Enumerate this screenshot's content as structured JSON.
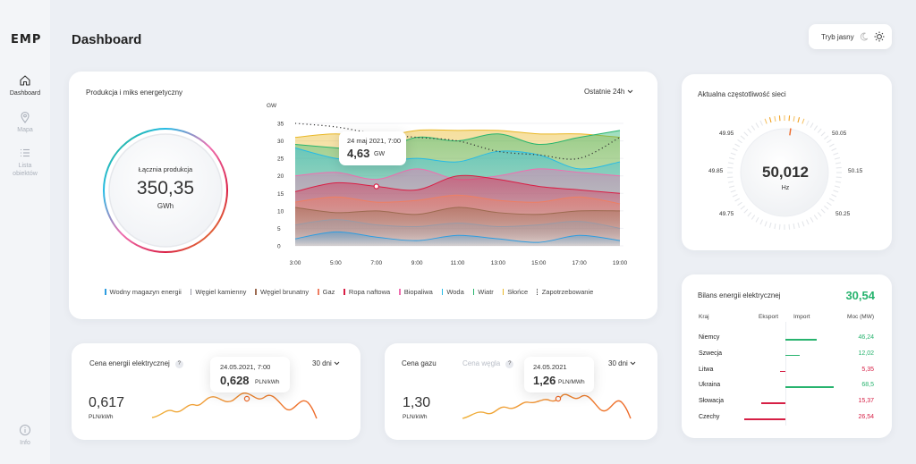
{
  "brand": {
    "logo": "EMP"
  },
  "nav": [
    {
      "label": "Dashboard",
      "icon": "home-icon"
    },
    {
      "label": "Mapa",
      "icon": "map-pin-icon"
    },
    {
      "label": "Lista obiektów",
      "icon": "list-icon"
    }
  ],
  "nav_footer": {
    "label": "Info",
    "icon": "info-icon"
  },
  "page": {
    "title": "Dashboard"
  },
  "theme": {
    "label": "Tryb jasny",
    "icons": [
      "moon-icon",
      "sun-icon"
    ]
  },
  "production": {
    "title": "Produkcja i miks energetyczny",
    "period": "Ostatnie 24h",
    "total_label": "Łącznia produkcja",
    "total_value": "350,35",
    "total_unit": "GWh",
    "tooltip": {
      "date": "24 maj 2021, 7:00",
      "value": "4,63",
      "unit": "GW"
    },
    "legend": [
      {
        "label": "Wodny magazyn energii",
        "color": "#2f9de0"
      },
      {
        "label": "Węgiel kamienny",
        "color": "#9a9aa6"
      },
      {
        "label": "Węgiel brunatny",
        "color": "#9c6a50"
      },
      {
        "label": "Gaz",
        "color": "#ee7f63"
      },
      {
        "label": "Ropa naftowa",
        "color": "#d91e45"
      },
      {
        "label": "Biopaliwa",
        "color": "#ef6fb0"
      },
      {
        "label": "Woda",
        "color": "#25bbe6"
      },
      {
        "label": "Wiatr",
        "color": "#28b56e"
      },
      {
        "label": "Słońce",
        "color": "#e9b827"
      },
      {
        "label": "Zapotrzebowanie",
        "color": "#333333"
      }
    ]
  },
  "chart_data": {
    "type": "area",
    "ylabel": "GW",
    "ylim": [
      0,
      35
    ],
    "yticks": [
      0,
      5,
      10,
      15,
      20,
      25,
      30,
      35
    ],
    "x": [
      "3:00",
      "5:00",
      "7:00",
      "9:00",
      "11:00",
      "13:00",
      "15:00",
      "17:00",
      "19:00"
    ],
    "series": [
      {
        "name": "Wodny magazyn energii",
        "color": "#2f9de0",
        "values": [
          2,
          4,
          2.5,
          1.5,
          3,
          2,
          1,
          3,
          1.5
        ]
      },
      {
        "name": "Węgiel kamienny",
        "color": "#9a9aa6",
        "values": [
          6,
          7.5,
          6,
          5.5,
          6.5,
          5.5,
          6,
          7,
          5
        ]
      },
      {
        "name": "Węgiel brunatny",
        "color": "#9c6a50",
        "values": [
          11,
          9.5,
          10,
          9,
          11,
          9.5,
          9,
          10,
          10
        ]
      },
      {
        "name": "Gaz",
        "color": "#ee7f63",
        "values": [
          12.5,
          14,
          12.5,
          13,
          14.5,
          13,
          12.5,
          14,
          12
        ]
      },
      {
        "name": "Ropa naftowa",
        "color": "#d91e45",
        "values": [
          15.5,
          18,
          17,
          16,
          20,
          19,
          17,
          16,
          15
        ]
      },
      {
        "name": "Biopaliwa",
        "color": "#ef6fb0",
        "values": [
          20,
          21,
          19,
          22,
          19,
          20,
          22,
          21,
          20
        ]
      },
      {
        "name": "Woda",
        "color": "#25bbe6",
        "values": [
          28,
          25,
          24,
          25,
          24,
          27,
          26,
          22,
          24
        ]
      },
      {
        "name": "Wiatr",
        "color": "#28b56e",
        "values": [
          29,
          28,
          27,
          31,
          30,
          32,
          29,
          31,
          33
        ]
      },
      {
        "name": "Słońce",
        "color": "#e9b827",
        "values": [
          31,
          32,
          31,
          33,
          33,
          33,
          32,
          32,
          31
        ]
      },
      {
        "name": "Zapotrzebowanie",
        "color": "#333333",
        "values": [
          35,
          34,
          32,
          31,
          30,
          27,
          26,
          25,
          31
        ]
      }
    ]
  },
  "frequency": {
    "title": "Aktualna częstotliwość sieci",
    "value": "50,012",
    "unit": "Hz",
    "ticks": [
      "49.95",
      "49.85",
      "49.75",
      "50.05",
      "50.15",
      "50.25"
    ]
  },
  "balance": {
    "title": "Bilans energii elektrycznej",
    "total": "30,54",
    "headers": [
      "Kraj",
      "Eksport",
      "Import",
      "Moc (MW)"
    ],
    "rows": [
      {
        "country": "Niemcy",
        "value": "46,24",
        "direction": "import",
        "magnitude": 0.65,
        "color": "#27b36e"
      },
      {
        "country": "Szwecja",
        "value": "12,02",
        "direction": "import",
        "magnitude": 0.3,
        "color": "#27b36e"
      },
      {
        "country": "Litwa",
        "value": "5,35",
        "direction": "export",
        "magnitude": 0.12,
        "color": "#d61f45"
      },
      {
        "country": "Ukraina",
        "value": "68,5",
        "direction": "import",
        "magnitude": 1.0,
        "color": "#27b36e"
      },
      {
        "country": "Słowacja",
        "value": "15,37",
        "direction": "export",
        "magnitude": 0.5,
        "color": "#d61f45"
      },
      {
        "country": "Czechy",
        "value": "26,54",
        "direction": "export",
        "magnitude": 0.85,
        "color": "#d61f45"
      }
    ]
  },
  "energy_price": {
    "title": "Cena energii elektrycznej",
    "help": "?",
    "period": "30 dni",
    "value": "0,617",
    "unit": "PLN/kWh",
    "tooltip": {
      "date": "24.05.2021, 7:00",
      "value": "0,628",
      "unit": "PLN/kWh"
    }
  },
  "gas_price": {
    "tabs": [
      "Cena gazu",
      "Cena węgla"
    ],
    "help": "?",
    "period": "30 dni",
    "value": "1,30",
    "unit": "PLN/kWh",
    "tooltip": {
      "date": "24.05.2021",
      "value": "1,26",
      "unit": "PLN/MWh"
    }
  }
}
